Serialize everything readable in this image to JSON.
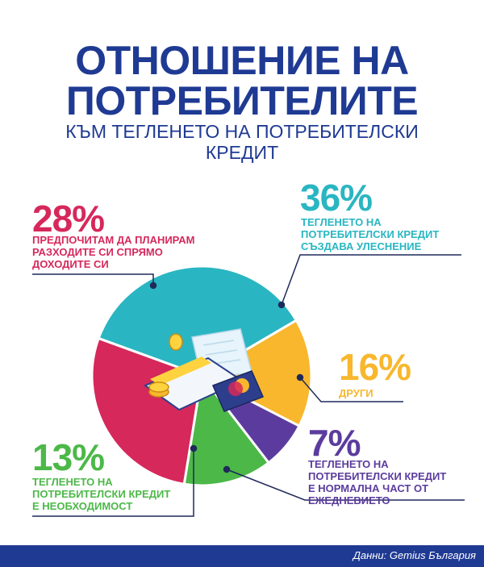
{
  "header": {
    "title_line1": "ОТНОШЕНИЕ НА",
    "title_line2": "ПОТРЕБИТЕЛИТЕ",
    "subtitle_line1": "КЪМ ТЕГЛЕНЕТО НА ПОТРЕБИТЕЛСКИ",
    "subtitle_line2": "КРЕДИТ"
  },
  "chart_data": {
    "type": "pie",
    "slices": [
      {
        "value": 36,
        "label_value": "36%",
        "label_lines": [
          "ТЕГЛЕНЕТО НА",
          "ПОТРЕБИТЕЛСКИ КРЕДИТ",
          "СЪЗДАВА УЛЕСНЕНИЕ"
        ],
        "color": "#29b6c2"
      },
      {
        "value": 16,
        "label_value": "16%",
        "label_lines": [
          "ДРУГИ"
        ],
        "color": "#f8b72d"
      },
      {
        "value": 7,
        "label_value": "7%",
        "label_lines": [
          "ТЕГЛЕНЕТО НА",
          "ПОТРЕБИТЕЛСКИ КРЕДИТ",
          "Е НОРМАЛНА ЧАСТ ОТ",
          "ЕЖЕДНЕВИЕТО"
        ],
        "color": "#5b3c9e"
      },
      {
        "value": 13,
        "label_value": "13%",
        "label_lines": [
          "ТЕГЛЕНЕТО НА",
          "ПОТРЕБИТЕЛСКИ КРЕДИТ",
          "Е НЕОБХОДИМОСТ"
        ],
        "color": "#4cb848"
      },
      {
        "value": 28,
        "label_value": "28%",
        "label_lines": [
          "ПРЕДПОЧИТАМ ДА ПЛАНИРАМ",
          "РАЗХОДИТЕ СИ СПРЯМО",
          "ДОХОДИТЕ СИ"
        ],
        "color": "#d6285b"
      }
    ]
  },
  "colors": {
    "title": "#1f3a93",
    "footer_bg": "#1f3a93",
    "leader_line": "#1f2a5a"
  },
  "footer": {
    "source": "Данни: Gemius България"
  }
}
